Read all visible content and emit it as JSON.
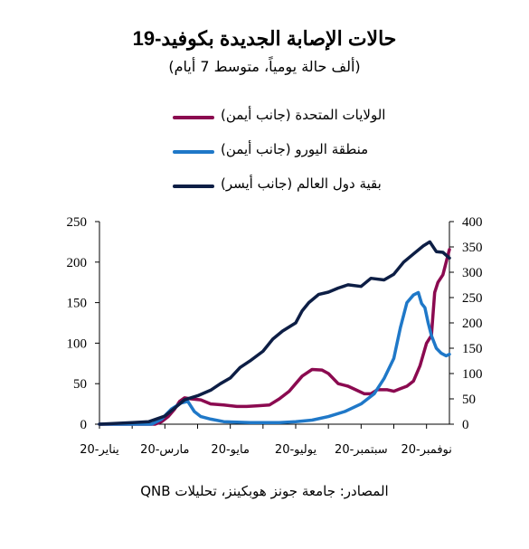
{
  "title": "حالات الإصابة الجديدة بكوفيد-19",
  "subtitle": "(ألف حالة يومياً، متوسط 7 أيام)",
  "source": "المصادر: جامعة جونز هوبكينز، تحليلات QNB",
  "colors": {
    "us": "#8B0A50",
    "euro": "#1F78C8",
    "world": "#0D1E45"
  },
  "legend": [
    {
      "label": "الولايات المتحدة (جانب أيمن)",
      "color": "#8B0A50"
    },
    {
      "label": "منطقة اليورو (جانب أيمن)",
      "color": "#1F78C8"
    },
    {
      "label": "بقية دول العالم (جانب أيسر)",
      "color": "#0D1E45"
    }
  ],
  "chart_data": {
    "type": "line",
    "x_labels": [
      "يناير-20",
      "مارس-20",
      "مايو-20",
      "يوليو-20",
      "سبتمبر-20",
      "نوفمبر-20"
    ],
    "x_label_months": [
      0,
      2,
      4,
      6,
      8,
      10
    ],
    "x_range_months": [
      0,
      10.7
    ],
    "left_axis": {
      "ticks": [
        0,
        50,
        100,
        150,
        200,
        250
      ],
      "ylim": [
        0,
        250
      ]
    },
    "right_axis": {
      "ticks": [
        0,
        50,
        100,
        150,
        200,
        250,
        300,
        350,
        400
      ],
      "ylim": [
        0,
        400
      ]
    },
    "series": [
      {
        "name": "الولايات المتحدة (جانب أيمن)",
        "axis": "right",
        "color": "#8B0A50",
        "x": [
          0,
          1.7,
          1.9,
          2.1,
          2.3,
          2.45,
          2.6,
          2.8,
          3.1,
          3.4,
          3.8,
          4.2,
          4.5,
          4.8,
          5.2,
          5.5,
          5.8,
          6.0,
          6.2,
          6.5,
          6.8,
          7.0,
          7.3,
          7.6,
          7.9,
          8.1,
          8.3,
          8.5,
          8.8,
          9.0,
          9.2,
          9.4,
          9.6,
          9.8,
          10.0,
          10.15,
          10.25,
          10.35,
          10.5,
          10.7
        ],
        "y": [
          0,
          0,
          5,
          15,
          30,
          45,
          52,
          50,
          48,
          40,
          38,
          35,
          35,
          36,
          38,
          50,
          65,
          80,
          95,
          108,
          107,
          100,
          80,
          75,
          66,
          60,
          60,
          68,
          68,
          65,
          70,
          75,
          85,
          115,
          160,
          175,
          260,
          280,
          295,
          345
        ]
      },
      {
        "name": "منطقة اليورو (جانب أيمن)",
        "axis": "right",
        "color": "#1F78C8",
        "x": [
          0,
          1.6,
          1.9,
          2.2,
          2.5,
          2.7,
          2.9,
          3.1,
          3.4,
          3.8,
          4.2,
          4.6,
          5.0,
          5.5,
          6.0,
          6.5,
          7.0,
          7.5,
          8.0,
          8.4,
          8.7,
          9.0,
          9.2,
          9.4,
          9.6,
          9.75,
          9.85,
          9.95,
          10.05,
          10.15,
          10.3,
          10.45,
          10.6,
          10.7
        ],
        "y": [
          0,
          0,
          10,
          30,
          42,
          45,
          25,
          15,
          10,
          5,
          4,
          3,
          3,
          3,
          5,
          8,
          15,
          25,
          40,
          60,
          90,
          130,
          190,
          240,
          255,
          260,
          238,
          230,
          200,
          175,
          150,
          140,
          135,
          138
        ]
      },
      {
        "name": "بقية دول العالم (جانب أيسر)",
        "axis": "left",
        "color": "#0D1E45",
        "x": [
          0,
          0.5,
          1.0,
          1.5,
          2.0,
          2.3,
          2.6,
          3.0,
          3.4,
          3.7,
          4.0,
          4.3,
          4.6,
          5.0,
          5.3,
          5.6,
          6.0,
          6.2,
          6.4,
          6.7,
          7.0,
          7.3,
          7.6,
          8.0,
          8.3,
          8.7,
          9.0,
          9.3,
          9.6,
          9.9,
          10.1,
          10.3,
          10.5,
          10.7
        ],
        "y": [
          0,
          1,
          2,
          3,
          10,
          20,
          30,
          35,
          42,
          50,
          57,
          70,
          78,
          90,
          105,
          115,
          125,
          140,
          150,
          160,
          163,
          168,
          172,
          170,
          180,
          178,
          185,
          200,
          210,
          220,
          225,
          213,
          212,
          205
        ]
      }
    ]
  }
}
